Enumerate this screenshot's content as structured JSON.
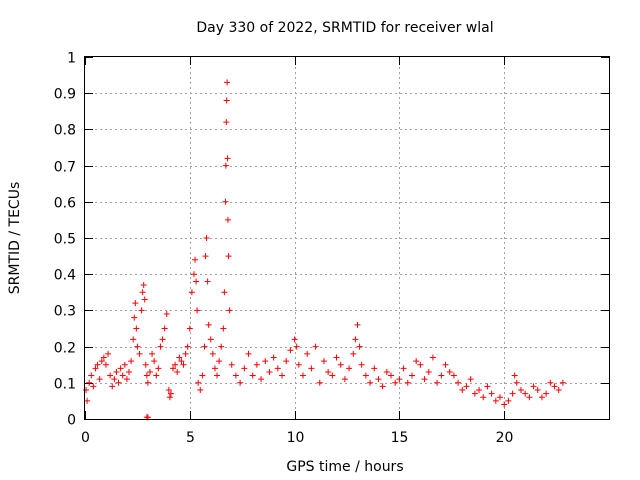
{
  "chart_data": {
    "type": "scatter",
    "title": "Day 330 of 2022, SRMTID for receiver wlal",
    "xlabel": "GPS time / hours",
    "ylabel": "SRMTID / TECUs",
    "xlim": [
      0,
      25
    ],
    "ylim": [
      0,
      1
    ],
    "xticks": [
      0,
      5,
      10,
      15,
      20
    ],
    "xtick_labels": [
      "0",
      "5",
      "10",
      "15",
      "20"
    ],
    "yticks": [
      0,
      0.1,
      0.2,
      0.3,
      0.4,
      0.5,
      0.6,
      0.7,
      0.8,
      0.9,
      1
    ],
    "ytick_labels": [
      "0",
      "0.1",
      "0.2",
      "0.3",
      "0.4",
      "0.5",
      "0.6",
      "0.7",
      "0.8",
      "0.9",
      "1"
    ],
    "grid": true,
    "marker": "plus",
    "color": "#ff0000",
    "series": [
      {
        "name": "SRMTID",
        "x": [
          0.05,
          0.1,
          0.2,
          0.3,
          0.4,
          0.5,
          0.6,
          0.7,
          0.8,
          0.9,
          1.0,
          1.1,
          1.2,
          1.3,
          1.4,
          1.5,
          1.6,
          1.7,
          1.8,
          1.9,
          2.0,
          2.1,
          2.2,
          2.3,
          2.35,
          2.4,
          2.45,
          2.5,
          2.6,
          2.7,
          2.75,
          2.8,
          2.85,
          2.9,
          2.95,
          3.0,
          3.1,
          3.2,
          3.3,
          3.4,
          3.5,
          3.6,
          3.7,
          3.8,
          3.9,
          4.0,
          4.05,
          4.1,
          4.2,
          4.3,
          4.4,
          4.5,
          4.6,
          4.7,
          4.8,
          4.9,
          5.0,
          5.1,
          5.2,
          5.25,
          5.3,
          5.35,
          5.4,
          5.5,
          5.6,
          5.7,
          5.75,
          5.8,
          5.85,
          5.9,
          6.0,
          6.1,
          6.2,
          6.3,
          6.4,
          6.5,
          6.6,
          6.65,
          6.7,
          6.72,
          6.74,
          6.76,
          6.78,
          6.8,
          6.82,
          6.85,
          6.9,
          7.0,
          7.2,
          7.4,
          7.6,
          7.8,
          8.0,
          8.2,
          8.4,
          8.6,
          8.8,
          9.0,
          9.2,
          9.4,
          9.6,
          9.8,
          10.0,
          10.1,
          10.2,
          10.4,
          10.6,
          10.8,
          11.0,
          11.2,
          11.4,
          11.6,
          11.8,
          12.0,
          12.2,
          12.4,
          12.6,
          12.8,
          12.9,
          13.0,
          13.1,
          13.2,
          13.4,
          13.6,
          13.8,
          14.0,
          14.2,
          14.4,
          14.6,
          14.8,
          15.0,
          15.2,
          15.4,
          15.6,
          15.8,
          16.0,
          16.2,
          16.4,
          16.6,
          16.8,
          17.0,
          17.2,
          17.4,
          17.6,
          17.8,
          18.0,
          18.2,
          18.4,
          18.6,
          18.8,
          19.0,
          19.2,
          19.4,
          19.6,
          19.8,
          20.0,
          20.2,
          20.4,
          20.5,
          20.6,
          20.8,
          21.0,
          21.2,
          21.4,
          21.6,
          21.8,
          22.0,
          22.2,
          22.4,
          22.6,
          22.8,
          2.95,
          3.0
        ],
        "y": [
          0.08,
          0.05,
          0.1,
          0.12,
          0.09,
          0.14,
          0.15,
          0.11,
          0.16,
          0.17,
          0.15,
          0.18,
          0.12,
          0.09,
          0.11,
          0.13,
          0.1,
          0.14,
          0.12,
          0.15,
          0.11,
          0.13,
          0.16,
          0.22,
          0.28,
          0.32,
          0.25,
          0.2,
          0.18,
          0.3,
          0.35,
          0.37,
          0.33,
          0.15,
          0.12,
          0.1,
          0.13,
          0.18,
          0.16,
          0.12,
          0.14,
          0.2,
          0.22,
          0.25,
          0.29,
          0.08,
          0.06,
          0.07,
          0.14,
          0.15,
          0.13,
          0.17,
          0.16,
          0.15,
          0.18,
          0.2,
          0.25,
          0.35,
          0.4,
          0.44,
          0.38,
          0.3,
          0.1,
          0.08,
          0.12,
          0.2,
          0.45,
          0.5,
          0.38,
          0.26,
          0.22,
          0.18,
          0.14,
          0.12,
          0.16,
          0.2,
          0.25,
          0.35,
          0.6,
          0.7,
          0.82,
          0.88,
          0.93,
          0.72,
          0.55,
          0.45,
          0.3,
          0.15,
          0.12,
          0.1,
          0.14,
          0.18,
          0.12,
          0.15,
          0.11,
          0.16,
          0.13,
          0.17,
          0.14,
          0.12,
          0.16,
          0.19,
          0.22,
          0.2,
          0.15,
          0.12,
          0.18,
          0.14,
          0.2,
          0.1,
          0.16,
          0.13,
          0.12,
          0.17,
          0.15,
          0.11,
          0.14,
          0.18,
          0.22,
          0.26,
          0.2,
          0.15,
          0.12,
          0.1,
          0.14,
          0.11,
          0.09,
          0.13,
          0.12,
          0.1,
          0.11,
          0.14,
          0.1,
          0.12,
          0.16,
          0.15,
          0.11,
          0.13,
          0.17,
          0.1,
          0.12,
          0.15,
          0.13,
          0.12,
          0.1,
          0.08,
          0.09,
          0.11,
          0.07,
          0.08,
          0.06,
          0.09,
          0.07,
          0.05,
          0.06,
          0.04,
          0.05,
          0.07,
          0.12,
          0.1,
          0.08,
          0.07,
          0.06,
          0.09,
          0.08,
          0.06,
          0.07,
          0.1,
          0.09,
          0.08,
          0.1,
          0.005,
          0.005
        ]
      }
    ]
  }
}
